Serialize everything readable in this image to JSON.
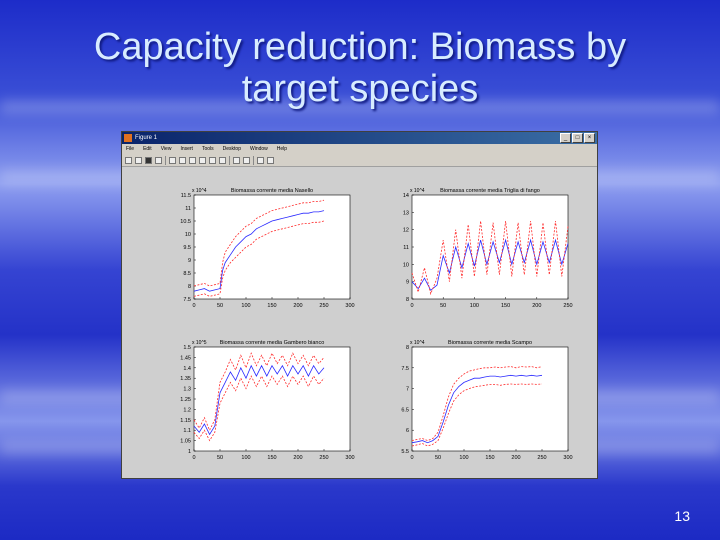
{
  "slide": {
    "title_line1": "Capacity reduction: Biomass by",
    "title_line2": "target species",
    "page_number": "13"
  },
  "window": {
    "title": "Figure 1",
    "menu": [
      "File",
      "Edit",
      "View",
      "Insert",
      "Tools",
      "Desktop",
      "Window",
      "Help"
    ],
    "toolbar_icons": [
      "new-icon",
      "open-icon",
      "save-icon",
      "print-icon",
      "pointer-icon",
      "zoom-in-icon",
      "zoom-out-icon",
      "pan-icon",
      "rotate-icon",
      "datacursor-icon",
      "colorbar-icon",
      "legend-icon",
      "plottools-icon",
      "dock-icon"
    ]
  },
  "chart_data": [
    {
      "type": "line",
      "title": "Biomassa corrente media Nasello",
      "exponent": "x 10^4",
      "xlim": [
        0,
        300
      ],
      "ylim": [
        7.5,
        11.5
      ],
      "xticks": [
        "0",
        "50",
        "100",
        "150",
        "200",
        "250",
        "300"
      ],
      "yticks": [
        "7.5",
        "8",
        "8.5",
        "9",
        "9.5",
        "10",
        "10.5",
        "11",
        "11.5"
      ],
      "series": [
        {
          "color": "#2a2aff",
          "style": "solid",
          "x": [
            0,
            10,
            20,
            30,
            40,
            50,
            55,
            60,
            70,
            80,
            90,
            100,
            110,
            120,
            130,
            140,
            150,
            160,
            170,
            180,
            190,
            200,
            210,
            220,
            230,
            240,
            250
          ],
          "y": [
            7.8,
            7.85,
            7.9,
            7.8,
            7.85,
            7.9,
            8.6,
            8.9,
            9.2,
            9.5,
            9.7,
            9.9,
            10.0,
            10.2,
            10.3,
            10.4,
            10.5,
            10.55,
            10.6,
            10.65,
            10.7,
            10.75,
            10.8,
            10.8,
            10.85,
            10.85,
            10.9
          ]
        },
        {
          "color": "#ff2a2a",
          "style": "dashed",
          "x": [
            0,
            10,
            20,
            30,
            40,
            50,
            55,
            60,
            70,
            80,
            90,
            100,
            110,
            120,
            130,
            140,
            150,
            160,
            170,
            180,
            190,
            200,
            210,
            220,
            230,
            240,
            250
          ],
          "y": [
            8.0,
            8.05,
            8.1,
            8.0,
            8.05,
            8.1,
            8.9,
            9.3,
            9.6,
            9.9,
            10.1,
            10.3,
            10.4,
            10.6,
            10.7,
            10.8,
            10.9,
            10.95,
            11.0,
            11.05,
            11.1,
            11.15,
            11.2,
            11.2,
            11.25,
            11.25,
            11.3
          ]
        },
        {
          "color": "#ff2a2a",
          "style": "dashed",
          "x": [
            0,
            10,
            20,
            30,
            40,
            50,
            55,
            60,
            70,
            80,
            90,
            100,
            110,
            120,
            130,
            140,
            150,
            160,
            170,
            180,
            190,
            200,
            210,
            220,
            230,
            240,
            250
          ],
          "y": [
            7.6,
            7.65,
            7.7,
            7.6,
            7.65,
            7.7,
            8.3,
            8.6,
            8.9,
            9.1,
            9.3,
            9.5,
            9.6,
            9.8,
            9.9,
            10.0,
            10.1,
            10.15,
            10.2,
            10.25,
            10.3,
            10.35,
            10.4,
            10.4,
            10.45,
            10.45,
            10.5
          ]
        }
      ]
    },
    {
      "type": "line",
      "title": "Biomassa corrente media Triglia di fango",
      "exponent": "x 10^4",
      "xlim": [
        0,
        250
      ],
      "ylim": [
        8,
        14
      ],
      "xticks": [
        "0",
        "50",
        "100",
        "150",
        "200",
        "250"
      ],
      "yticks": [
        "8",
        "9",
        "10",
        "11",
        "12",
        "13",
        "14"
      ],
      "series": [
        {
          "color": "#2a2aff",
          "style": "solid",
          "x": [
            0,
            10,
            20,
            30,
            40,
            50,
            60,
            70,
            80,
            90,
            100,
            110,
            120,
            130,
            140,
            150,
            160,
            170,
            180,
            190,
            200,
            210,
            220,
            230,
            240,
            250
          ],
          "y": [
            9.0,
            8.6,
            9.2,
            8.5,
            8.8,
            10.5,
            9.5,
            11.0,
            9.8,
            11.2,
            9.9,
            11.4,
            10.0,
            11.3,
            10.1,
            11.4,
            10.0,
            11.3,
            10.1,
            11.4,
            10.0,
            11.3,
            10.1,
            11.4,
            10.0,
            11.2
          ]
        },
        {
          "color": "#ff2a2a",
          "style": "dashed",
          "x": [
            0,
            10,
            20,
            30,
            40,
            50,
            60,
            70,
            80,
            90,
            100,
            110,
            120,
            130,
            140,
            150,
            160,
            170,
            180,
            190,
            200,
            210,
            220,
            230,
            240,
            250
          ],
          "y": [
            9.5,
            8.4,
            9.8,
            8.3,
            9.2,
            11.4,
            9.0,
            12.0,
            9.2,
            12.3,
            9.3,
            12.5,
            9.4,
            12.4,
            9.4,
            12.5,
            9.3,
            12.4,
            9.4,
            12.5,
            9.3,
            12.4,
            9.4,
            12.5,
            9.3,
            12.2
          ]
        }
      ]
    },
    {
      "type": "line",
      "title": "Biomassa corrente media Gambero bianco",
      "exponent": "x 10^5",
      "xlim": [
        0,
        300
      ],
      "ylim": [
        1,
        1.5
      ],
      "xticks": [
        "0",
        "50",
        "100",
        "150",
        "200",
        "250",
        "300"
      ],
      "yticks": [
        "1",
        "1.05",
        "1.1",
        "1.15",
        "1.2",
        "1.25",
        "1.3",
        "1.35",
        "1.4",
        "1.45",
        "1.5"
      ],
      "series": [
        {
          "color": "#2a2aff",
          "style": "solid",
          "x": [
            0,
            10,
            20,
            30,
            40,
            50,
            60,
            70,
            80,
            90,
            100,
            110,
            120,
            130,
            140,
            150,
            160,
            170,
            180,
            190,
            200,
            210,
            220,
            230,
            240,
            250
          ],
          "y": [
            1.12,
            1.09,
            1.13,
            1.08,
            1.12,
            1.28,
            1.33,
            1.38,
            1.34,
            1.4,
            1.35,
            1.41,
            1.36,
            1.41,
            1.36,
            1.41,
            1.37,
            1.41,
            1.36,
            1.41,
            1.37,
            1.41,
            1.36,
            1.41,
            1.37,
            1.4
          ]
        },
        {
          "color": "#ff2a2a",
          "style": "dashed",
          "x": [
            0,
            10,
            20,
            30,
            40,
            50,
            60,
            70,
            80,
            90,
            100,
            110,
            120,
            130,
            140,
            150,
            160,
            170,
            180,
            190,
            200,
            210,
            220,
            230,
            240,
            250
          ],
          "y": [
            1.15,
            1.11,
            1.16,
            1.1,
            1.15,
            1.33,
            1.38,
            1.44,
            1.39,
            1.46,
            1.4,
            1.47,
            1.41,
            1.46,
            1.41,
            1.47,
            1.42,
            1.46,
            1.41,
            1.47,
            1.42,
            1.46,
            1.41,
            1.46,
            1.42,
            1.45
          ]
        },
        {
          "color": "#ff2a2a",
          "style": "dashed",
          "x": [
            0,
            10,
            20,
            30,
            40,
            50,
            60,
            70,
            80,
            90,
            100,
            110,
            120,
            130,
            140,
            150,
            160,
            170,
            180,
            190,
            200,
            210,
            220,
            230,
            240,
            250
          ],
          "y": [
            1.09,
            1.06,
            1.1,
            1.05,
            1.09,
            1.23,
            1.28,
            1.33,
            1.29,
            1.35,
            1.3,
            1.36,
            1.31,
            1.36,
            1.31,
            1.36,
            1.32,
            1.36,
            1.31,
            1.36,
            1.32,
            1.36,
            1.31,
            1.36,
            1.32,
            1.35
          ]
        }
      ]
    },
    {
      "type": "line",
      "title": "Biomassa corrente media Scampo",
      "exponent": "x 10^4",
      "xlim": [
        0,
        300
      ],
      "ylim": [
        5.5,
        8
      ],
      "xticks": [
        "0",
        "50",
        "100",
        "150",
        "200",
        "250",
        "300"
      ],
      "yticks": [
        "5.5",
        "6",
        "6.5",
        "7",
        "7.5",
        "8"
      ],
      "series": [
        {
          "color": "#2a2aff",
          "style": "solid",
          "x": [
            0,
            10,
            20,
            30,
            40,
            50,
            60,
            70,
            80,
            90,
            100,
            110,
            120,
            130,
            140,
            150,
            160,
            170,
            180,
            190,
            200,
            210,
            220,
            230,
            240,
            250
          ],
          "y": [
            5.7,
            5.72,
            5.75,
            5.7,
            5.75,
            5.85,
            6.2,
            6.6,
            6.9,
            7.05,
            7.15,
            7.2,
            7.25,
            7.25,
            7.28,
            7.3,
            7.3,
            7.28,
            7.3,
            7.32,
            7.3,
            7.32,
            7.3,
            7.32,
            7.3,
            7.32
          ]
        },
        {
          "color": "#ff2a2a",
          "style": "dashed",
          "x": [
            0,
            10,
            20,
            30,
            40,
            50,
            60,
            70,
            80,
            90,
            100,
            110,
            120,
            130,
            140,
            150,
            160,
            170,
            180,
            190,
            200,
            210,
            220,
            230,
            240,
            250
          ],
          "y": [
            5.75,
            5.78,
            5.8,
            5.75,
            5.8,
            5.95,
            6.35,
            6.8,
            7.1,
            7.25,
            7.35,
            7.42,
            7.45,
            7.48,
            7.5,
            7.5,
            7.52,
            7.5,
            7.52,
            7.53,
            7.5,
            7.53,
            7.52,
            7.53,
            7.5,
            7.53
          ]
        },
        {
          "color": "#ff2a2a",
          "style": "dashed",
          "x": [
            0,
            10,
            20,
            30,
            40,
            50,
            60,
            70,
            80,
            90,
            100,
            110,
            120,
            130,
            140,
            150,
            160,
            170,
            180,
            190,
            200,
            210,
            220,
            230,
            240,
            250
          ],
          "y": [
            5.62,
            5.65,
            5.68,
            5.62,
            5.66,
            5.75,
            6.05,
            6.4,
            6.7,
            6.85,
            6.95,
            7.0,
            7.04,
            7.06,
            7.08,
            7.1,
            7.1,
            7.08,
            7.1,
            7.11,
            7.1,
            7.11,
            7.1,
            7.11,
            7.1,
            7.11
          ]
        }
      ]
    }
  ]
}
